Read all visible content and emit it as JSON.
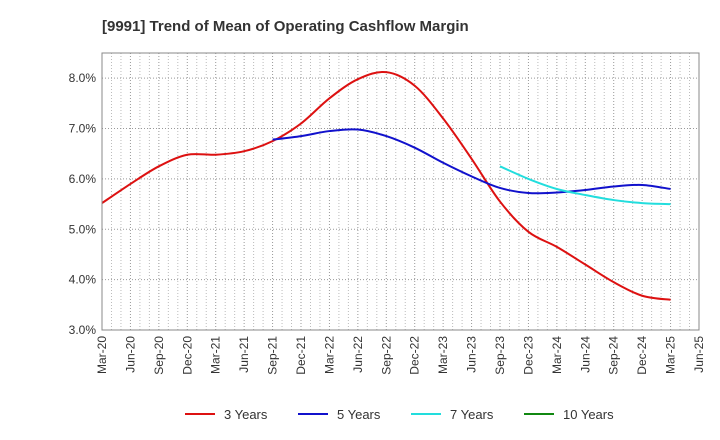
{
  "chart_data": {
    "type": "line",
    "title": "[9991]  Trend of Mean of Operating Cashflow Margin",
    "xlabel": "",
    "ylabel": "",
    "ylim": [
      3.0,
      8.5
    ],
    "y_ticks": [
      3.0,
      4.0,
      5.0,
      6.0,
      7.0,
      8.0
    ],
    "y_tick_labels": [
      "3.0%",
      "4.0%",
      "5.0%",
      "6.0%",
      "7.0%",
      "8.0%"
    ],
    "x_tick_labels": [
      "Mar-20",
      "Jun-20",
      "Sep-20",
      "Dec-20",
      "Mar-21",
      "Jun-21",
      "Sep-21",
      "Dec-21",
      "Mar-22",
      "Jun-22",
      "Sep-22",
      "Dec-22",
      "Mar-23",
      "Jun-23",
      "Sep-23",
      "Dec-23",
      "Mar-24",
      "Jun-24",
      "Sep-24",
      "Dec-24",
      "Mar-25",
      "Jun-25"
    ],
    "grid": true,
    "legend_position": "bottom",
    "series": [
      {
        "name": "3 Years",
        "color": "#dd1111",
        "values": [
          5.52,
          5.9,
          6.25,
          6.48,
          6.48,
          6.55,
          6.75,
          7.1,
          7.6,
          7.98,
          8.12,
          7.85,
          7.2,
          6.4,
          5.55,
          4.95,
          4.65,
          4.3,
          3.95,
          3.68,
          3.6,
          null
        ]
      },
      {
        "name": "5 Years",
        "color": "#1111cc",
        "values": [
          null,
          null,
          null,
          null,
          null,
          null,
          6.78,
          6.85,
          6.95,
          6.98,
          6.85,
          6.62,
          6.32,
          6.05,
          5.82,
          5.72,
          5.73,
          5.78,
          5.85,
          5.88,
          5.8,
          null
        ]
      },
      {
        "name": "7 Years",
        "color": "#22dddd",
        "values": [
          null,
          null,
          null,
          null,
          null,
          null,
          null,
          null,
          null,
          null,
          null,
          null,
          null,
          null,
          6.25,
          6.0,
          5.8,
          5.68,
          5.58,
          5.52,
          5.5,
          null
        ]
      },
      {
        "name": "10 Years",
        "color": "#118811",
        "values": [
          null,
          null,
          null,
          null,
          null,
          null,
          null,
          null,
          null,
          null,
          null,
          null,
          null,
          null,
          null,
          null,
          null,
          null,
          null,
          null,
          null,
          null
        ]
      }
    ]
  }
}
